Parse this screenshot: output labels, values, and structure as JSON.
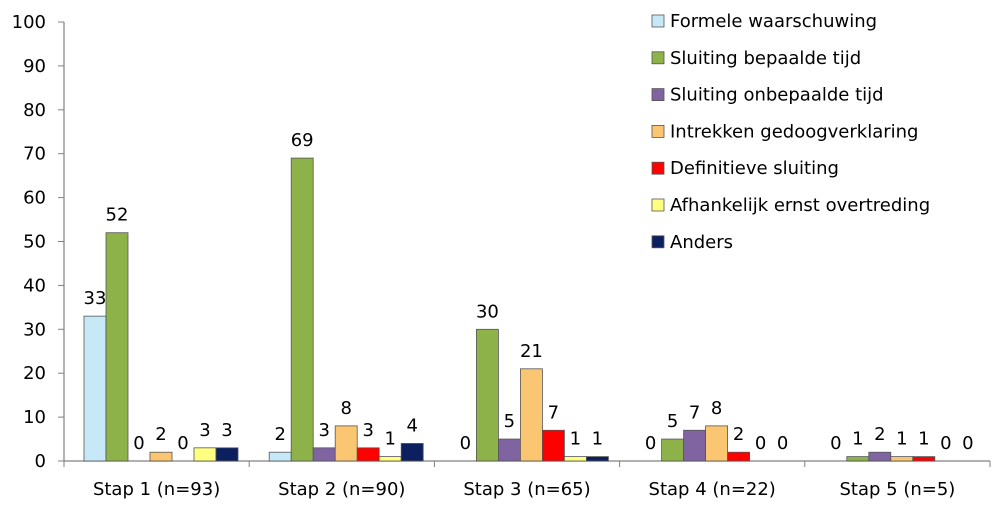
{
  "chart_data": {
    "type": "bar",
    "title": "",
    "xlabel": "",
    "ylabel": "",
    "ylim": [
      0,
      100
    ],
    "yticks": [
      0,
      10,
      20,
      30,
      40,
      50,
      60,
      70,
      80,
      90,
      100
    ],
    "grid": false,
    "legend_position": "top-right",
    "categories": [
      "Stap 1 (n=93)",
      "Stap 2 (n=90)",
      "Stap 3 (n=65)",
      "Stap 4 (n=22)",
      "Stap 5 (n=5)"
    ],
    "series": [
      {
        "name": "Formele waarschuwing",
        "color": "#c6e8f7",
        "values": [
          33,
          2,
          0,
          0,
          0
        ]
      },
      {
        "name": "Sluiting bepaalde tijd",
        "color": "#8db24a",
        "values": [
          52,
          69,
          30,
          5,
          1
        ]
      },
      {
        "name": "Sluiting onbepaalde tijd",
        "color": "#8064a2",
        "values": [
          0,
          3,
          5,
          7,
          2
        ]
      },
      {
        "name": "Intrekken gedoogverklaring",
        "color": "#fac672",
        "values": [
          2,
          8,
          21,
          8,
          1
        ]
      },
      {
        "name": "Definitieve sluiting",
        "color": "#ff0000",
        "values": [
          0,
          3,
          7,
          2,
          1
        ]
      },
      {
        "name": "Afhankelijk ernst overtreding",
        "color": "#ffff80",
        "values": [
          3,
          1,
          1,
          0,
          0
        ]
      },
      {
        "name": "Anders",
        "color": "#0c2060",
        "values": [
          3,
          4,
          1,
          0,
          0
        ]
      }
    ]
  }
}
